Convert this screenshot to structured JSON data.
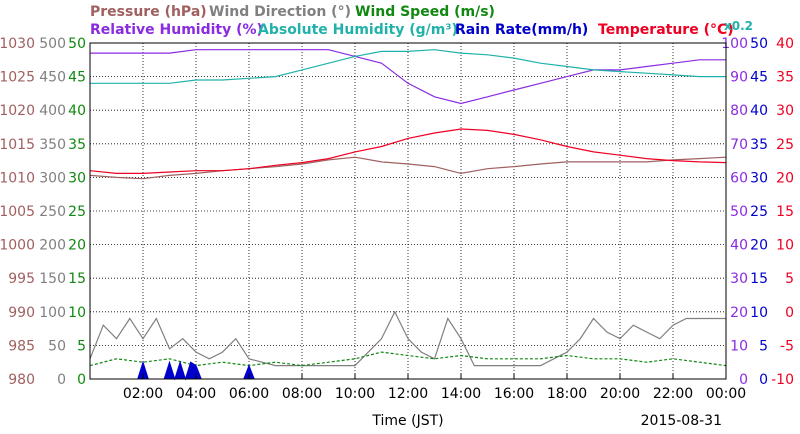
{
  "chart_data": {
    "type": "line",
    "date": "2015-08-31",
    "xlabel": "Time (JST)",
    "x_ticks": [
      "02:00",
      "04:00",
      "06:00",
      "08:00",
      "10:00",
      "12:00",
      "14:00",
      "16:00",
      "18:00",
      "20:00",
      "22:00",
      "00:00"
    ],
    "x_range_hours": [
      0,
      24
    ],
    "grid": true,
    "legend": {
      "row1": [
        {
          "label": "Pressure (hPa)",
          "color": "#a06060"
        },
        {
          "label": "Wind Direction (°)",
          "color": "#808080"
        },
        {
          "label": "Wind Speed (m/s)",
          "color": "#118811"
        }
      ],
      "row2": [
        {
          "label": "Relative Humidity (%)",
          "color": "#8a2be2"
        },
        {
          "label": "Absolute Humidity (g/m³)",
          "color": "#20b2aa"
        },
        {
          "label": "Rain Rate(mm/h)",
          "color": "#0000cc"
        },
        {
          "label": "Temperature (°C)",
          "color": "#ee0022"
        },
        {
          "label": "x0.2",
          "color": "#20b2aa"
        }
      ]
    },
    "axes": {
      "pressure": {
        "color": "#a06060",
        "ticks": [
          "1030",
          "1025",
          "1020",
          "1015",
          "1010",
          "1005",
          "1000",
          "995",
          "990",
          "985",
          "980"
        ],
        "range": [
          980,
          1030
        ]
      },
      "wind_dir": {
        "color": "#808080",
        "ticks": [
          "500",
          "450",
          "400",
          "350",
          "300",
          "250",
          "200",
          "150",
          "100",
          "50",
          "0"
        ],
        "range": [
          0,
          500
        ]
      },
      "wind_speed": {
        "color": "#118811",
        "ticks": [
          "50",
          "45",
          "40",
          "35",
          "30",
          "25",
          "20",
          "15",
          "10",
          "5",
          "0"
        ],
        "range": [
          0,
          50
        ]
      },
      "humidity": {
        "color": "#8a2be2",
        "ticks": [
          "100",
          "90",
          "80",
          "70",
          "60",
          "50",
          "40",
          "30",
          "20",
          "10",
          "0"
        ],
        "range": [
          0,
          100
        ]
      },
      "rain": {
        "color": "#0000cc",
        "ticks": [
          "50",
          "45",
          "40",
          "35",
          "30",
          "25",
          "20",
          "15",
          "10",
          "5",
          "0"
        ],
        "range": [
          0,
          50
        ]
      },
      "temperature": {
        "color": "#ee0022",
        "ticks": [
          "40",
          "35",
          "30",
          "25",
          "20",
          "15",
          "10",
          "5",
          "0",
          "-5",
          "-10"
        ],
        "range": [
          -10,
          40
        ]
      }
    },
    "series": [
      {
        "name": "Pressure (hPa)",
        "axis": "pressure",
        "color": "#a06060",
        "x": [
          0,
          1,
          2,
          3,
          4,
          5,
          6,
          7,
          8,
          9,
          10,
          11,
          12,
          13,
          14,
          15,
          16,
          17,
          18,
          19,
          20,
          21,
          22,
          23,
          24
        ],
        "values": [
          1010.3,
          1010.0,
          1009.8,
          1010.3,
          1010.6,
          1011.0,
          1011.3,
          1011.6,
          1012.0,
          1012.6,
          1013.0,
          1012.3,
          1012.0,
          1011.6,
          1010.6,
          1011.3,
          1011.6,
          1012.0,
          1012.3,
          1012.3,
          1012.3,
          1012.3,
          1012.6,
          1012.8,
          1013.0
        ]
      },
      {
        "name": "Temperature (°C)",
        "axis": "temperature",
        "color": "#ee0022",
        "x": [
          0,
          1,
          2,
          3,
          4,
          5,
          6,
          7,
          8,
          9,
          10,
          11,
          12,
          13,
          14,
          15,
          16,
          17,
          18,
          19,
          20,
          21,
          22,
          23,
          24
        ],
        "values": [
          21.0,
          20.6,
          20.6,
          20.8,
          21.0,
          21.0,
          21.3,
          21.8,
          22.2,
          22.8,
          23.8,
          24.6,
          25.8,
          26.6,
          27.2,
          27.0,
          26.4,
          25.6,
          24.6,
          23.8,
          23.3,
          22.8,
          22.5,
          22.3,
          22.2
        ]
      },
      {
        "name": "Relative Humidity (%)",
        "axis": "humidity",
        "color": "#8a2be2",
        "x": [
          0,
          1,
          2,
          3,
          4,
          5,
          6,
          7,
          8,
          9,
          10,
          11,
          12,
          13,
          14,
          15,
          16,
          17,
          18,
          19,
          20,
          21,
          22,
          23,
          24
        ],
        "values": [
          97.0,
          97.0,
          97.0,
          97.0,
          98.0,
          98.0,
          98.0,
          98.0,
          98.0,
          98.0,
          96.0,
          94.0,
          88.0,
          84.0,
          82.0,
          84.0,
          86.0,
          88.0,
          90.0,
          92.0,
          92.0,
          93.0,
          94.0,
          95.0,
          95.0
        ]
      },
      {
        "name": "Absolute Humidity (g/m³) x0.2",
        "axis": "humidity",
        "color": "#20b2aa",
        "x": [
          0,
          1,
          2,
          3,
          4,
          5,
          6,
          7,
          8,
          9,
          10,
          11,
          12,
          13,
          14,
          15,
          16,
          17,
          18,
          19,
          20,
          21,
          22,
          23,
          24
        ],
        "values": [
          88.0,
          88.0,
          88.0,
          88.0,
          89.0,
          89.0,
          89.5,
          90.0,
          92.0,
          94.0,
          96.0,
          97.5,
          97.5,
          98.0,
          97.0,
          96.5,
          95.5,
          94.0,
          93.0,
          92.0,
          91.5,
          91.0,
          90.5,
          90.0,
          90.0
        ]
      },
      {
        "name": "Wind Direction (°)",
        "axis": "wind_dir",
        "color": "#808080",
        "x": [
          0,
          0.5,
          1,
          1.5,
          2,
          2.5,
          3,
          3.5,
          4,
          4.5,
          5,
          5.5,
          6,
          6.5,
          7,
          7.5,
          8,
          8.5,
          9,
          9.5,
          10,
          10.5,
          11,
          11.5,
          12,
          12.5,
          13,
          13.5,
          14,
          14.5,
          15,
          15.5,
          16,
          16.5,
          17,
          17.5,
          18,
          18.5,
          19,
          19.5,
          20,
          20.5,
          21,
          21.5,
          22,
          22.5,
          23,
          23.5,
          24
        ],
        "values": [
          30,
          80,
          60,
          90,
          60,
          90,
          45,
          60,
          40,
          30,
          40,
          60,
          30,
          25,
          20,
          20,
          20,
          20,
          20,
          20,
          20,
          40,
          60,
          100,
          60,
          40,
          30,
          90,
          60,
          20,
          20,
          20,
          20,
          20,
          20,
          30,
          40,
          60,
          90,
          70,
          60,
          80,
          70,
          60,
          80,
          90,
          90,
          90,
          90
        ]
      },
      {
        "name": "Wind Speed (m/s)",
        "axis": "wind_speed",
        "color": "#118811",
        "x": [
          0,
          1,
          2,
          3,
          4,
          5,
          6,
          7,
          8,
          9,
          10,
          11,
          12,
          13,
          14,
          15,
          16,
          17,
          18,
          19,
          20,
          21,
          22,
          23,
          24
        ],
        "values": [
          2.0,
          3.0,
          2.5,
          3.0,
          2.0,
          2.5,
          2.0,
          2.5,
          2.0,
          2.5,
          3.0,
          4.0,
          3.5,
          3.0,
          3.5,
          3.0,
          3.0,
          3.0,
          3.5,
          3.0,
          3.0,
          2.5,
          3.0,
          2.5,
          2.0
        ]
      },
      {
        "name": "Rain Rate(mm/h)",
        "axis": "rain",
        "color": "#0000cc",
        "x": [
          0,
          1.8,
          2.0,
          2.2,
          2.8,
          3.0,
          3.2,
          3.4,
          3.6,
          3.8,
          4.0,
          4.2,
          5.8,
          6.0,
          6.2,
          24
        ],
        "values": [
          0,
          0,
          2.5,
          0,
          0,
          2.5,
          0,
          2.5,
          0,
          2.5,
          2.0,
          0,
          0,
          2.0,
          0,
          0
        ]
      }
    ]
  }
}
